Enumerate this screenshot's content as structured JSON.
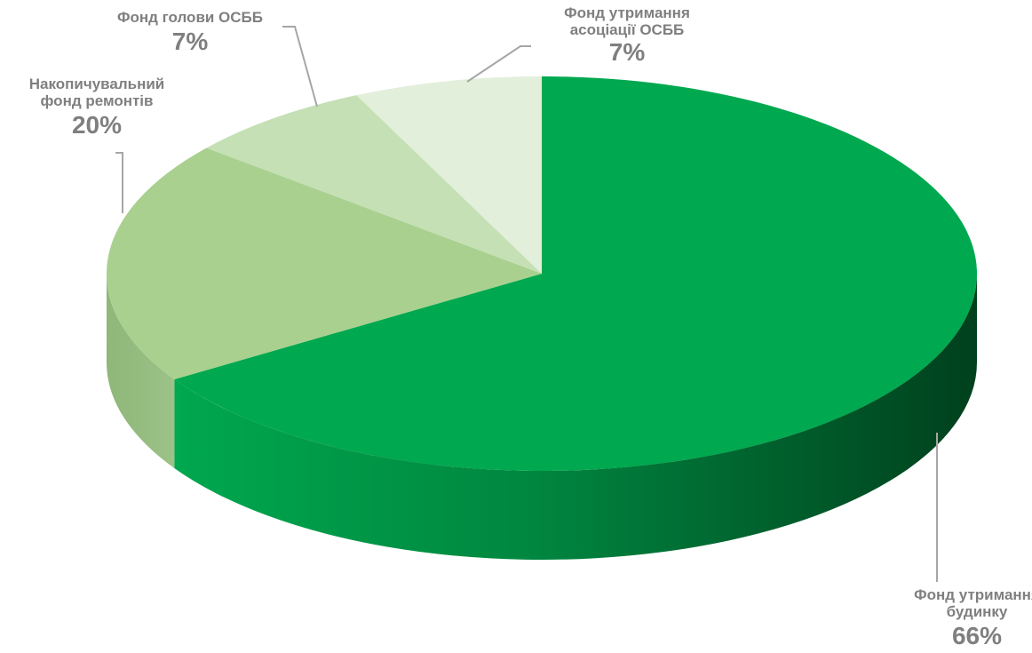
{
  "chart_data": {
    "type": "pie",
    "style": "3d",
    "slices": [
      {
        "label": "Фонд утримання будинку",
        "label_lines": [
          "Фонд утримання",
          "будинку"
        ],
        "percent_label": "66%",
        "value": 66,
        "color": "#00a84f"
      },
      {
        "label": "Накопичувальний фонд ремонтів",
        "label_lines": [
          "Накопичувальний",
          "фонд ремонтів"
        ],
        "percent_label": "20%",
        "value": 20,
        "color": "#a9d08e"
      },
      {
        "label": "Фонд голови ОСББ",
        "label_lines": [
          "Фонд голови ОСББ"
        ],
        "percent_label": "7%",
        "value": 7,
        "color": "#c5e0b4"
      },
      {
        "label": "Фонд утримання асоціації ОСББ",
        "label_lines": [
          "Фонд утримання",
          "асоціації ОСББ"
        ],
        "percent_label": "7%",
        "value": 7,
        "color": "#e2efda"
      }
    ],
    "legend": "none"
  }
}
